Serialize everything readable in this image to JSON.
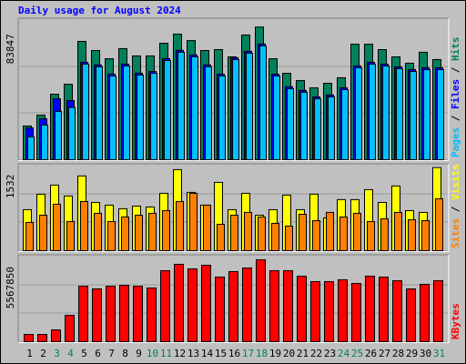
{
  "chart_data": [
    {
      "type": "bar",
      "title": "Daily usage for August 2024",
      "series": [
        {
          "name": "Hits",
          "color": "#00805c",
          "values": [
            21300,
            28200,
            41400,
            47700,
            74800,
            69000,
            63800,
            70200,
            65600,
            65600,
            73600,
            79400,
            75300,
            69000,
            69600,
            65000,
            78800,
            83847,
            63800,
            54600,
            50000,
            45400,
            48300,
            51800,
            73000,
            73000,
            69600,
            65000,
            61000,
            67900,
            63300
          ]
        },
        {
          "name": "Files",
          "color": "#0000ff",
          "values": [
            20100,
            25900,
            38500,
            37400,
            61600,
            59900,
            54100,
            60400,
            54700,
            55800,
            63900,
            69100,
            66200,
            59900,
            54100,
            64500,
            68500,
            73100,
            54100,
            46100,
            43800,
            39700,
            40900,
            45500,
            59300,
            61600,
            60400,
            58700,
            57000,
            58100,
            58100
          ]
        },
        {
          "name": "Pages",
          "color": "#00c0ff",
          "values": [
            14400,
            21900,
            30500,
            33000,
            60400,
            58700,
            52900,
            59200,
            53500,
            54600,
            62700,
            67900,
            65000,
            58700,
            52900,
            63300,
            67300,
            71900,
            52900,
            44900,
            42600,
            38500,
            39700,
            44300,
            58100,
            60400,
            59200,
            57500,
            55800,
            56900,
            56900
          ]
        }
      ],
      "ylim": [
        0,
        88000
      ],
      "yticks": [
        83847
      ],
      "legend_separator": " / "
    },
    {
      "type": "bar",
      "series": [
        {
          "name": "Visits",
          "color": "#ffff00",
          "values": [
            756,
            1042,
            1210,
            1008,
            1378,
            890,
            840,
            773,
            823,
            806,
            1058,
            1495,
            1075,
            840,
            1260,
            756,
            1058,
            655,
            756,
            1025,
            756,
            1042,
            605,
            941,
            941,
            1126,
            890,
            1193,
            739,
            706,
            1532
          ]
        },
        {
          "name": "Sites",
          "color": "#ff8000",
          "values": [
            521,
            655,
            857,
            538,
            907,
            689,
            538,
            622,
            655,
            689,
            739,
            907,
            1058,
            840,
            487,
            655,
            706,
            622,
            504,
            454,
            672,
            554,
            706,
            622,
            689,
            538,
            588,
            706,
            571,
            554,
            958
          ]
        }
      ],
      "ylim": [
        0,
        1560
      ],
      "yticks": [
        1532
      ],
      "legend_separator": " / "
    },
    {
      "type": "bar",
      "categories": [
        "1",
        "2",
        "3",
        "4",
        "5",
        "6",
        "7",
        "8",
        "9",
        "10",
        "11",
        "12",
        "13",
        "14",
        "15",
        "16",
        "17",
        "18",
        "19",
        "20",
        "21",
        "22",
        "23",
        "24",
        "25",
        "26",
        "27",
        "28",
        "29",
        "30",
        "31"
      ],
      "series": [
        {
          "name": "KBytes",
          "color": "#ff0000",
          "values": [
            494900,
            494900,
            804200,
            1794000,
            3773800,
            3588200,
            3773800,
            3835700,
            3773800,
            3650000,
            4825500,
            5258500,
            4949200,
            5196700,
            4392400,
            4763600,
            5011100,
            5567850,
            4825500,
            4825500,
            4454300,
            4083100,
            4083100,
            4206800,
            3959400,
            4454300,
            4392400,
            4144900,
            3588200,
            3897500,
            4144900
          ]
        }
      ],
      "ylim": [
        0,
        5750000
      ],
      "yticks": [
        5567850
      ],
      "highlight_indices": [
        2,
        3,
        9,
        10,
        16,
        17,
        23,
        24,
        30
      ],
      "highlight_color": "#00805c"
    }
  ]
}
